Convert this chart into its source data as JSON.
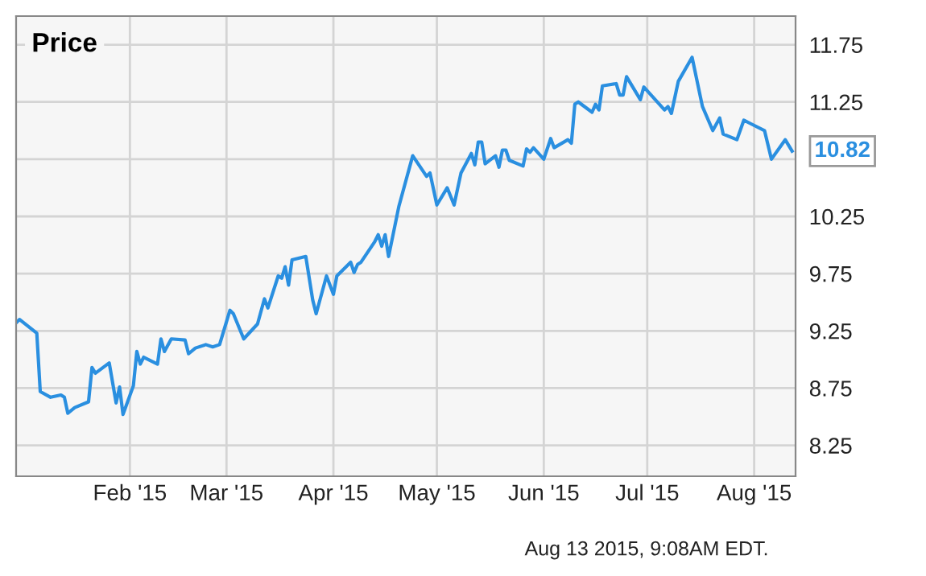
{
  "chart_data": {
    "type": "line",
    "title": "Price",
    "x": [
      "2014-12-30",
      "2014-12-31",
      "2015-01-05",
      "2015-01-06",
      "2015-01-09",
      "2015-01-12",
      "2015-01-13",
      "2015-01-14",
      "2015-01-16",
      "2015-01-20",
      "2015-01-21",
      "2015-01-22",
      "2015-01-26",
      "2015-01-28",
      "2015-01-29",
      "2015-01-30",
      "2015-02-02",
      "2015-02-03",
      "2015-02-04",
      "2015-02-05",
      "2015-02-09",
      "2015-02-10",
      "2015-02-11",
      "2015-02-13",
      "2015-02-17",
      "2015-02-18",
      "2015-02-20",
      "2015-02-23",
      "2015-02-25",
      "2015-02-27",
      "2015-03-02",
      "2015-03-03",
      "2015-03-06",
      "2015-03-10",
      "2015-03-12",
      "2015-03-13",
      "2015-03-16",
      "2015-03-17",
      "2015-03-18",
      "2015-03-19",
      "2015-03-20",
      "2015-03-24",
      "2015-03-26",
      "2015-03-27",
      "2015-03-30",
      "2015-04-01",
      "2015-04-02",
      "2015-04-06",
      "2015-04-07",
      "2015-04-08",
      "2015-04-09",
      "2015-04-13",
      "2015-04-14",
      "2015-04-15",
      "2015-04-16",
      "2015-04-17",
      "2015-04-20",
      "2015-04-24",
      "2015-04-28",
      "2015-04-29",
      "2015-05-01",
      "2015-05-04",
      "2015-05-06",
      "2015-05-08",
      "2015-05-11",
      "2015-05-12",
      "2015-05-13",
      "2015-05-14",
      "2015-05-15",
      "2015-05-18",
      "2015-05-19",
      "2015-05-20",
      "2015-05-21",
      "2015-05-22",
      "2015-05-26",
      "2015-05-27",
      "2015-05-28",
      "2015-05-29",
      "2015-06-01",
      "2015-06-03",
      "2015-06-04",
      "2015-06-08",
      "2015-06-09",
      "2015-06-10",
      "2015-06-11",
      "2015-06-15",
      "2015-06-16",
      "2015-06-17",
      "2015-06-18",
      "2015-06-22",
      "2015-06-23",
      "2015-06-24",
      "2015-06-25",
      "2015-06-29",
      "2015-06-30",
      "2015-07-06",
      "2015-07-07",
      "2015-07-08",
      "2015-07-10",
      "2015-07-14",
      "2015-07-17",
      "2015-07-20",
      "2015-07-22",
      "2015-07-23",
      "2015-07-27",
      "2015-07-29",
      "2015-07-31",
      "2015-08-04",
      "2015-08-06",
      "2015-08-10",
      "2015-08-12"
    ],
    "series": [
      {
        "color": "#2a8fe0",
        "values": [
          9.32,
          9.35,
          9.23,
          8.72,
          8.67,
          8.69,
          8.67,
          8.53,
          8.58,
          8.63,
          8.93,
          8.88,
          8.97,
          8.62,
          8.76,
          8.52,
          8.77,
          9.07,
          8.96,
          9.02,
          8.96,
          9.18,
          9.07,
          9.18,
          9.17,
          9.05,
          9.1,
          9.13,
          9.11,
          9.13,
          9.43,
          9.4,
          9.18,
          9.31,
          9.53,
          9.45,
          9.73,
          9.71,
          9.81,
          9.65,
          9.87,
          9.9,
          9.52,
          9.4,
          9.73,
          9.57,
          9.73,
          9.85,
          9.76,
          9.83,
          9.85,
          10.03,
          10.09,
          9.99,
          10.09,
          9.9,
          10.34,
          10.78,
          10.6,
          10.63,
          10.35,
          10.5,
          10.35,
          10.63,
          10.8,
          10.7,
          10.9,
          10.9,
          10.71,
          10.78,
          10.68,
          10.83,
          10.83,
          10.74,
          10.69,
          10.84,
          10.81,
          10.85,
          10.75,
          10.93,
          10.85,
          10.92,
          10.89,
          11.23,
          11.25,
          11.16,
          11.23,
          11.18,
          11.39,
          11.41,
          11.31,
          11.31,
          11.47,
          11.27,
          11.38,
          11.18,
          11.21,
          11.15,
          11.43,
          11.64,
          11.21,
          11.0,
          11.11,
          10.97,
          10.92,
          11.09,
          11.06,
          11.0,
          10.75,
          10.92,
          10.82
        ]
      }
    ],
    "xlim": [
      "2014-12-30",
      "2015-08-13"
    ],
    "xticks": [
      {
        "value": "2015-02-01",
        "label": "Feb '15"
      },
      {
        "value": "2015-03-01",
        "label": "Mar '15"
      },
      {
        "value": "2015-04-01",
        "label": "Apr '15"
      },
      {
        "value": "2015-05-01",
        "label": "May '15"
      },
      {
        "value": "2015-06-01",
        "label": "Jun '15"
      },
      {
        "value": "2015-07-01",
        "label": "Jul '15"
      },
      {
        "value": "2015-08-01",
        "label": "Aug '15"
      }
    ],
    "ylim": [
      7.98,
      12.0
    ],
    "yticks": [
      8.25,
      8.75,
      9.25,
      9.75,
      10.25,
      {
        "value": 10.75,
        "label": null
      },
      11.25,
      11.75
    ],
    "tick_labels": true,
    "grid": true,
    "legend": false,
    "annotations": [
      {
        "text": "10.82",
        "x": "2015-08-12",
        "y": 10.82
      },
      "Aug 13 2015, 9:08AM EDT."
    ]
  }
}
